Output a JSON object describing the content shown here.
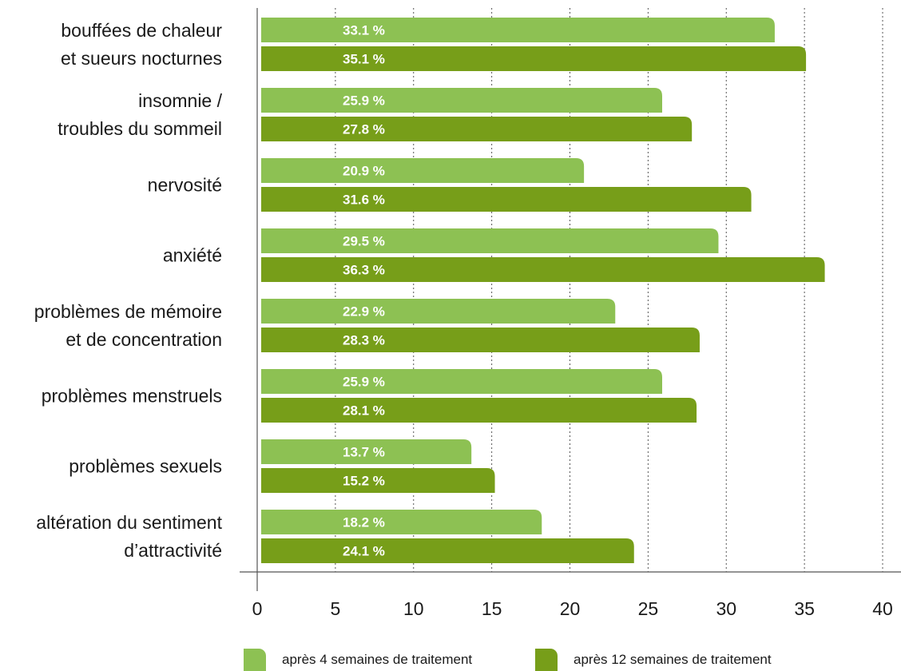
{
  "chart_data": {
    "type": "bar",
    "orientation": "horizontal",
    "categories": [
      [
        "bouffées de chaleur",
        "et sueurs nocturnes"
      ],
      [
        "insomnie /",
        "troubles du sommeil"
      ],
      [
        "nervosité"
      ],
      [
        "anxiété"
      ],
      [
        "problèmes de mémoire",
        "et de concentration"
      ],
      [
        "problèmes menstruels"
      ],
      [
        "problèmes sexuels"
      ],
      [
        "altération du sentiment",
        "d’attractivité"
      ]
    ],
    "series": [
      {
        "name": "après 4 semaines de traitement",
        "color": "#8dc153",
        "values": [
          33.1,
          25.9,
          20.9,
          29.5,
          22.9,
          25.9,
          13.7,
          18.2
        ],
        "labels": [
          "33.1 %",
          "25.9 %",
          "20.9 %",
          "29.5 %",
          "22.9 %",
          "25.9 %",
          "13.7 %",
          "18.2 %"
        ]
      },
      {
        "name": "après 12 semaines de traitement",
        "color": "#779e19",
        "values": [
          35.1,
          27.8,
          31.6,
          36.3,
          28.3,
          28.1,
          15.2,
          24.1
        ],
        "labels": [
          "35.1 %",
          "27.8 %",
          "31.6 %",
          "36.3 %",
          "28.3 %",
          "28.1 %",
          "15.2 %",
          "24.1 %"
        ]
      }
    ],
    "xlim": [
      0,
      40
    ],
    "xticks": [
      "0",
      "5",
      "10",
      "15",
      "20",
      "25",
      "30",
      "35",
      "40"
    ],
    "xtick_values": [
      0,
      5,
      10,
      15,
      20,
      25,
      30,
      35,
      40
    ],
    "grid": "vertical dotted",
    "legend_position": "bottom"
  },
  "legend": {
    "series1_label": "après 4 semaines de traitement",
    "series2_label": "après 12 semaines de traitement"
  }
}
